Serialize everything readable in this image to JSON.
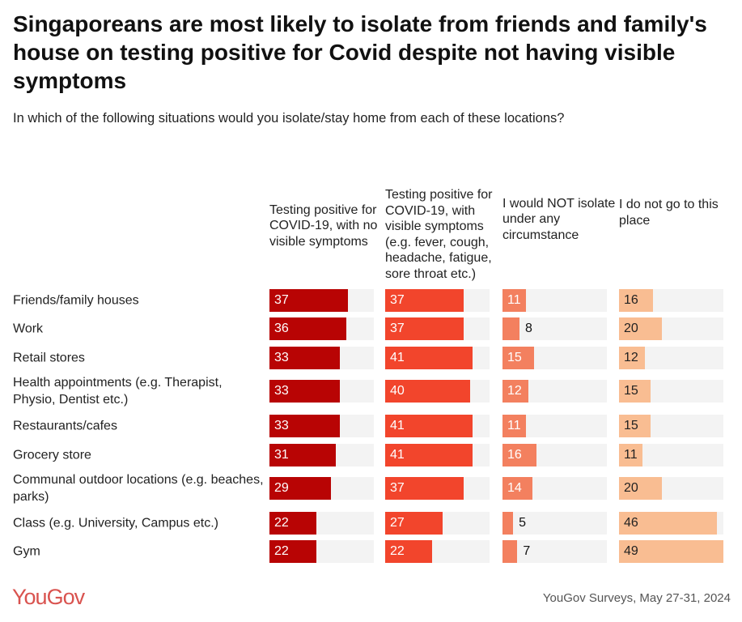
{
  "title": "Singaporeans are most likely to isolate from friends and family's house on testing positive for Covid despite not having visible symptoms",
  "subtitle": "In which of the following situations would you isolate/stay home from each of these locations?",
  "logo": "YouGov",
  "source": "YouGov Surveys, May 27-31, 2024",
  "chart_data": {
    "type": "bar",
    "orientation": "horizontal",
    "xlim": [
      0,
      49
    ],
    "categories": [
      "Friends/family houses",
      "Work",
      "Retail stores",
      "Health appointments (e.g. Therapist, Physio, Dentist etc.)",
      "Restaurants/cafes",
      "Grocery store",
      "Communal outdoor locations (e.g. beaches, parks)",
      "Class (e.g. University, Campus etc.)",
      "Gym"
    ],
    "series": [
      {
        "name": "Testing positive for COVID-19, with no visible symptoms",
        "color": "#b80404",
        "label_color": "#ffffff",
        "values": [
          37,
          36,
          33,
          33,
          33,
          31,
          29,
          22,
          22
        ]
      },
      {
        "name": "Testing positive for COVID-19, with visible symptoms (e.g. fever, cough, headache, fatigue, sore throat etc.)",
        "color": "#f2452c",
        "label_color": "#ffffff",
        "values": [
          37,
          37,
          41,
          40,
          41,
          41,
          37,
          27,
          22
        ]
      },
      {
        "name": "I would NOT isolate under any circumstance",
        "color": "#f3805f",
        "label_color": "#ffffff",
        "values": [
          11,
          8,
          15,
          12,
          11,
          16,
          14,
          5,
          7
        ]
      },
      {
        "name": "I do not go to this place",
        "color": "#f9bd92",
        "label_color": "#222222",
        "values": [
          16,
          20,
          12,
          15,
          15,
          11,
          20,
          46,
          49
        ]
      }
    ],
    "track_color": "#f3f3f3"
  }
}
